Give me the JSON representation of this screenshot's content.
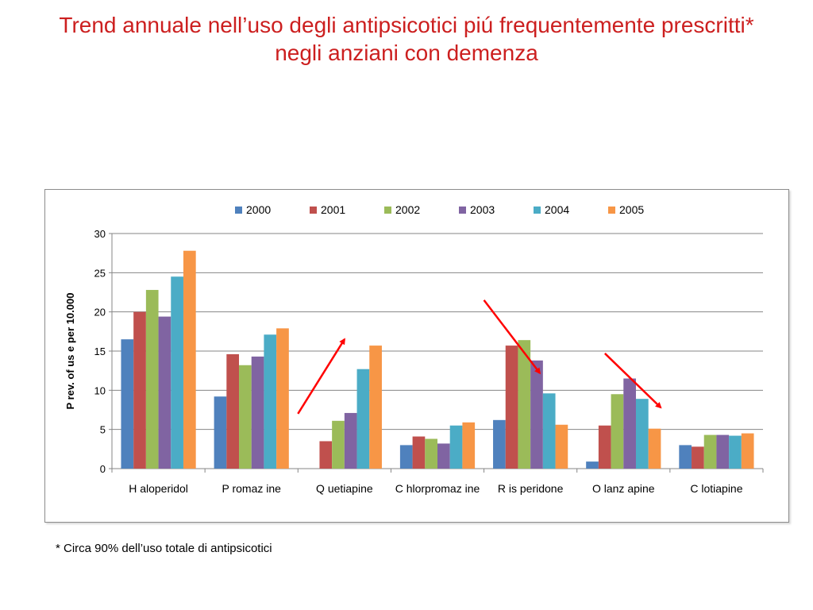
{
  "slide": {
    "title_line1": "Trend annuale nell’uso degli antipsicotici piú frequentemente prescritti*",
    "title_line2": "negli anziani con demenza",
    "footnote": "* Circa 90% dell’uso totale di antipsicotici"
  },
  "chart_data": {
    "type": "bar",
    "title": "",
    "xlabel": "",
    "ylabel": "P rev. of us e per 10.000",
    "ylim": [
      0,
      30
    ],
    "yticks": [
      0,
      5,
      10,
      15,
      20,
      25,
      30
    ],
    "grid": true,
    "legend_position": "top",
    "categories": [
      "H aloperidol",
      "P romaz ine",
      "Q uetiapine",
      "C hlorpromaz ine",
      "R is peridone",
      "O lanz apine",
      "C lotiapine"
    ],
    "series": [
      {
        "name": "2000",
        "color": "#4f81bd",
        "values": [
          16.5,
          9.2,
          0,
          3.0,
          6.2,
          0.9,
          3.0
        ]
      },
      {
        "name": "2001",
        "color": "#c0504d",
        "values": [
          20.0,
          14.6,
          3.5,
          4.1,
          15.7,
          5.5,
          2.8
        ]
      },
      {
        "name": "2002",
        "color": "#9bbb59",
        "values": [
          22.8,
          13.2,
          6.1,
          3.8,
          16.4,
          9.5,
          4.3
        ]
      },
      {
        "name": "2003",
        "color": "#8064a2",
        "values": [
          19.4,
          14.3,
          7.1,
          3.2,
          13.8,
          11.5,
          4.3
        ]
      },
      {
        "name": "2004",
        "color": "#4bacc6",
        "values": [
          24.5,
          17.1,
          12.7,
          5.5,
          9.6,
          8.9,
          4.2
        ]
      },
      {
        "name": "2005",
        "color": "#f79646",
        "values": [
          27.8,
          17.9,
          15.7,
          5.9,
          5.6,
          5.1,
          4.5
        ]
      }
    ],
    "annotations": [
      {
        "type": "arrow",
        "color": "#ff0000",
        "from": {
          "category": 2,
          "value": 7.0
        },
        "to": {
          "category": 2.5,
          "value": 16.5
        },
        "direction": "up"
      },
      {
        "type": "arrow",
        "color": "#ff0000",
        "from": {
          "category": 4,
          "value": 21.5
        },
        "to": {
          "category": 4.6,
          "value": 12.2
        },
        "direction": "down"
      },
      {
        "type": "arrow",
        "color": "#ff0000",
        "from": {
          "category": 5.3,
          "value": 14.7
        },
        "to": {
          "category": 5.9,
          "value": 7.8
        },
        "direction": "down"
      }
    ]
  }
}
